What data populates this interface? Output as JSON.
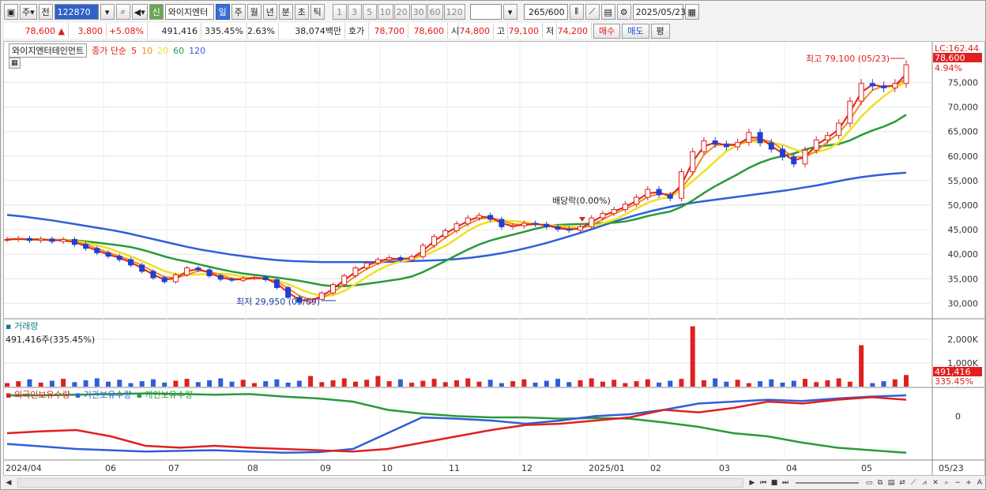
{
  "toolbar": {
    "period_main": "주",
    "prev_label": "전",
    "code": "122870",
    "credit_badge": "신",
    "stock_name": "와이지엔터",
    "period_tabs": [
      "일",
      "주",
      "월",
      "년",
      "분",
      "초",
      "틱"
    ],
    "active_period": "일",
    "interval_buttons": [
      "1",
      "3",
      "5",
      "10",
      "20",
      "30",
      "60",
      "120"
    ],
    "count_value": "265",
    "count_total": "/600",
    "date_value": "2025/05/23"
  },
  "quote": {
    "price": "78,600",
    "change_arrow": "▲",
    "change": "3,800",
    "change_pct": "+5.08%",
    "volume": "491,416",
    "volume_ratio": "335.45%",
    "turnover": "2.63%",
    "amount": "38,074백만",
    "bid_label": "호가",
    "bid_price": "78,700",
    "ask_price": "78,600",
    "open_label": "시",
    "open_value": "74,800",
    "high_label": "고",
    "high_value": "79,100",
    "low_label": "저",
    "low_value": "74,200",
    "buy_label": "매수",
    "sell_label": "매도",
    "flat_label": "평"
  },
  "price_panel": {
    "title": "와이지엔터테인먼트",
    "ma_title": "종가 단순",
    "ma_periods": [
      "5",
      "10",
      "20",
      "60",
      "120"
    ],
    "ma_colors": [
      "#e02020",
      "#f08c20",
      "#f0e020",
      "#2a9a3a",
      "#2f5fd8"
    ],
    "lc_label": "LC:162.44",
    "current_tag": "78,600",
    "current_pct": "4.94%",
    "high_annotation": "최고 79,100 (05/23)",
    "low_annotation": "최저 29,950 (09/09)",
    "dividend_annotation": "배당락(0.00%)"
  },
  "volume_panel": {
    "title": "거래량",
    "subtitle": "491,416주(335.45%)",
    "tag_value": "491,416",
    "tag_pct": "335.45%"
  },
  "holding_panel": {
    "series_labels": [
      "외국인보유수량",
      "기관보유수량",
      "개인보유수량"
    ],
    "series_colors": [
      "#e02020",
      "#2f5fd8",
      "#2a9a3a"
    ],
    "zero_label": "0"
  },
  "x_axis_labels": [
    "2024/04",
    "06",
    "07",
    "08",
    "09",
    "10",
    "11",
    "12",
    "2025/01",
    "02",
    "03",
    "04",
    "05",
    "05/23"
  ],
  "chart_data": [
    {
      "type": "candlestick",
      "title": "",
      "ylim": [
        27000,
        82000
      ],
      "y_ticks": [
        "30,000",
        "35,000",
        "40,000",
        "45,000",
        "50,000",
        "55,000",
        "60,000",
        "65,000",
        "70,000",
        "75,000"
      ],
      "y_tick_values": [
        30000,
        35000,
        40000,
        45000,
        50000,
        55000,
        60000,
        65000,
        70000,
        75000
      ],
      "close_series": [
        43000,
        43200,
        42800,
        43100,
        42600,
        43000,
        42000,
        41200,
        40300,
        39600,
        38900,
        37800,
        36500,
        35200,
        34400,
        35800,
        37200,
        36800,
        35600,
        34900,
        34700,
        35100,
        35300,
        34800,
        33200,
        31200,
        30200,
        30800,
        32100,
        33800,
        35600,
        37200,
        38200,
        38900,
        39300,
        38800,
        39500,
        41800,
        43600,
        44800,
        46200,
        47400,
        47900,
        47100,
        45600,
        45800,
        46300,
        46100,
        45600,
        45100,
        44900,
        45600,
        47400,
        48300,
        49100,
        50200,
        51600,
        53200,
        52100,
        51400,
        56800,
        60900,
        63100,
        62400,
        61900,
        62800,
        64800,
        62700,
        61400,
        59800,
        58400,
        61200,
        63300,
        64200,
        66700,
        71200,
        74800,
        74300,
        73900,
        74800,
        78600
      ],
      "ma120_series": [
        48000,
        47700,
        47300,
        46900,
        46400,
        45900,
        45400,
        44900,
        44300,
        43600,
        42900,
        42200,
        41500,
        40900,
        40400,
        39900,
        39500,
        39100,
        38800,
        38600,
        38500,
        38400,
        38400,
        38400,
        38400,
        38400,
        38500,
        38600,
        38700,
        38800,
        39000,
        39300,
        39700,
        40200,
        40800,
        41500,
        42300,
        43200,
        44100,
        45100,
        46100,
        47100,
        48000,
        48800,
        49500,
        50100,
        50600,
        51000,
        51400,
        51800,
        52200,
        52600,
        53000,
        53500,
        54000,
        54600,
        55200,
        55700,
        56100,
        56400,
        56600
      ]
    },
    {
      "type": "bar",
      "title": "거래량",
      "y_ticks": [
        "1,000K",
        "2,000K"
      ],
      "y_tick_values": [
        1000000,
        2000000
      ],
      "highlight_values": [
        2550000,
        1750000,
        491416
      ]
    },
    {
      "type": "line",
      "title": "외국인/기관/개인 보유수량",
      "series": [
        {
          "name": "외국인보유수량",
          "trend": "up"
        },
        {
          "name": "기관보유수량",
          "trend": "up"
        },
        {
          "name": "개인보유수량",
          "trend": "down"
        }
      ]
    }
  ]
}
